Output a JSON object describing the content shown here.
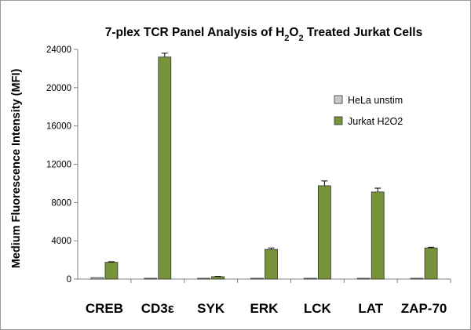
{
  "chart_data": {
    "type": "bar",
    "title_parts": [
      "7-plex  TCR Panel Analysis of H",
      "2",
      "O",
      "2",
      " Treated Jurkat Cells"
    ],
    "ylabel": "Medium Fluorescence Intensity (MFI)",
    "xlabel": "",
    "categories": [
      "CREB",
      "CD3ε",
      "SYK",
      "ERK",
      "LCK",
      "LAT",
      "ZAP-70"
    ],
    "ylim": [
      0,
      24000
    ],
    "yticks": [
      "0",
      "4000",
      "8000",
      "12000",
      "16000",
      "20000",
      "24000"
    ],
    "grid": false,
    "legend_position": "right",
    "series": [
      {
        "name": "HeLa unstim",
        "color": "#c8c8c8",
        "values": [
          150,
          60,
          80,
          60,
          60,
          60,
          60
        ],
        "errors": [
          0,
          0,
          0,
          0,
          0,
          0,
          0
        ]
      },
      {
        "name": "Jurkat H2O2",
        "color": "#77933c",
        "values": [
          1750,
          23200,
          250,
          3100,
          9750,
          9100,
          3250
        ],
        "errors": [
          60,
          400,
          30,
          150,
          500,
          400,
          80
        ]
      }
    ]
  }
}
